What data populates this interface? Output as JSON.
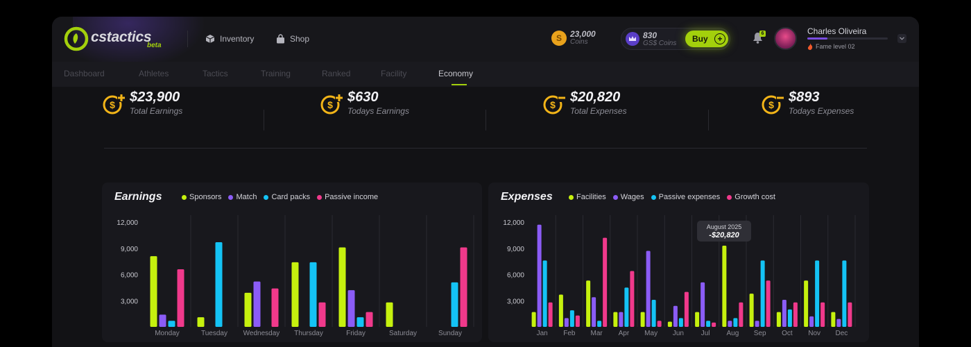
{
  "header": {
    "brand": "cstactics",
    "brand_tag": "beta",
    "nav": [
      {
        "label": "Inventory",
        "icon": "cube-icon"
      },
      {
        "label": "Shop",
        "icon": "shopping-bag-icon"
      }
    ],
    "coins": {
      "value": "23,000",
      "label": "Coins",
      "symbol": "S"
    },
    "gs_coins": {
      "value": "830",
      "label": "GS$ Coins"
    },
    "buy_label": "Buy",
    "notifications_count": "6",
    "user": {
      "name": "Charles Oliveira",
      "fame_label": "Fame level 02",
      "fame_progress": 0.25
    }
  },
  "tabs": [
    {
      "label": "Dashboard",
      "active": false
    },
    {
      "label": "Athletes",
      "active": false
    },
    {
      "label": "Tactics",
      "active": false
    },
    {
      "label": "Training",
      "active": false
    },
    {
      "label": "Ranked",
      "active": false
    },
    {
      "label": "Facility",
      "active": false
    },
    {
      "label": "Economy",
      "active": true
    }
  ],
  "stats": [
    {
      "value": "$23,900",
      "label": "Total Earnings",
      "kind": "plus"
    },
    {
      "value": "$630",
      "label": "Todays Earnings",
      "kind": "plus"
    },
    {
      "value": "$20,820",
      "label": "Total Expenses",
      "kind": "minus"
    },
    {
      "value": "$893",
      "label": "Todays Expenses",
      "kind": "minus"
    }
  ],
  "colors": {
    "accent": "#a3d00c",
    "purple": "#8b5cf6",
    "cyan": "#14c3f5",
    "pink": "#f0398b",
    "coin": "#f2b418"
  },
  "chart_data": [
    {
      "type": "bar",
      "title": "Earnings",
      "categories": [
        "Monday",
        "Tuesday",
        "Wednesday",
        "Thursday",
        "Friday",
        "Saturday",
        "Sunday"
      ],
      "series": [
        {
          "name": "Sponsors",
          "color": "#c6f10e",
          "values": [
            8100,
            1100,
            3900,
            7400,
            9100,
            2800,
            0
          ]
        },
        {
          "name": "Match",
          "color": "#8b5cf6",
          "values": [
            1400,
            0,
            5200,
            0,
            4200,
            0,
            0
          ]
        },
        {
          "name": "Card packs",
          "color": "#14c3f5",
          "values": [
            700,
            9700,
            0,
            7400,
            1100,
            0,
            5100
          ]
        },
        {
          "name": "Passive income",
          "color": "#f0398b",
          "values": [
            6600,
            0,
            4400,
            2800,
            1700,
            0,
            9100
          ]
        }
      ],
      "yticks": [
        "3,000",
        "6,000",
        "9,000",
        "12,000"
      ],
      "ylim": [
        0,
        12000
      ]
    },
    {
      "type": "bar",
      "title": "Expenses",
      "categories": [
        "Jan",
        "Feb",
        "Mar",
        "Apr",
        "May",
        "Jun",
        "Jul",
        "Aug",
        "Sep",
        "Oct",
        "Nov",
        "Dec"
      ],
      "series": [
        {
          "name": "Facilities",
          "color": "#c6f10e",
          "values": [
            1700,
            3700,
            5300,
            1700,
            1700,
            600,
            1700,
            9300,
            3800,
            1700,
            5300,
            1700
          ]
        },
        {
          "name": "Wages",
          "color": "#8b5cf6",
          "values": [
            11700,
            1000,
            3400,
            1700,
            8700,
            2400,
            5100,
            700,
            700,
            3100,
            1200,
            900
          ]
        },
        {
          "name": "Passive expenses",
          "color": "#14c3f5",
          "values": [
            7600,
            1900,
            700,
            4500,
            3100,
            1000,
            700,
            1000,
            7600,
            2000,
            7600,
            7600
          ]
        },
        {
          "name": "Growth cost",
          "color": "#f0398b",
          "values": [
            2800,
            1300,
            10200,
            6400,
            700,
            4000,
            500,
            2800,
            5300,
            2800,
            2800,
            2800
          ]
        }
      ],
      "yticks": [
        "3,000",
        "6,000",
        "9,000",
        "12,000"
      ],
      "ylim": [
        0,
        12000
      ],
      "tooltip": {
        "date": "August 2025",
        "value": "-$20,820"
      }
    }
  ]
}
